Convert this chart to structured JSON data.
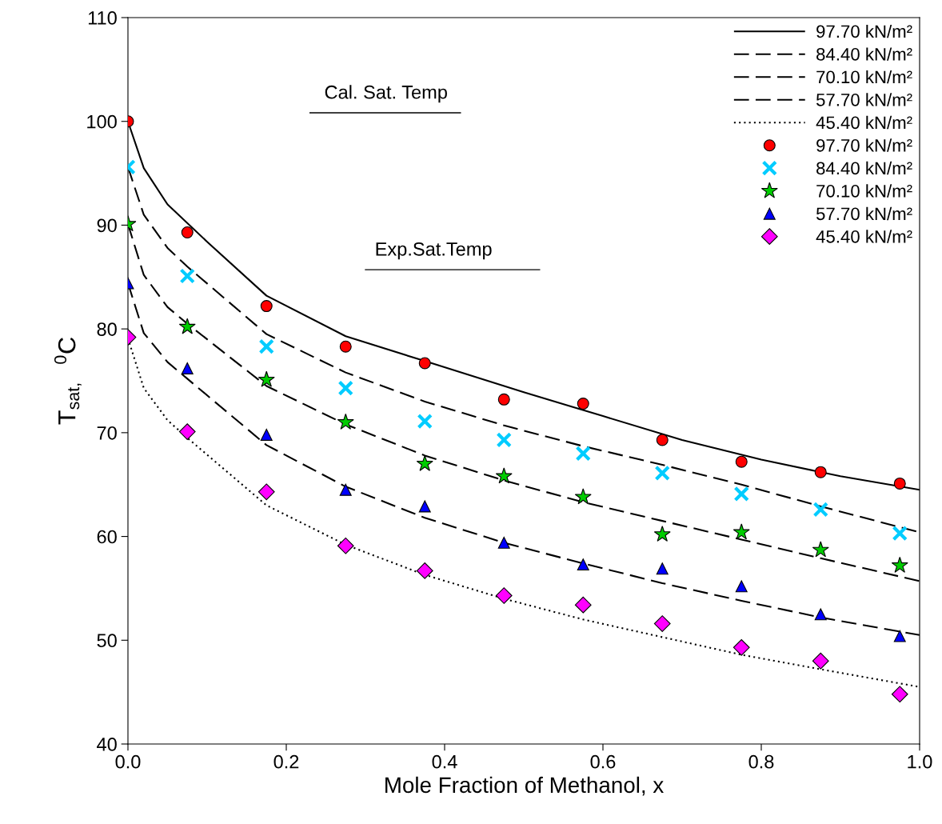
{
  "chart_data": {
    "type": "line",
    "xlabel": "Mole Fraction of Methanol, x",
    "ylabel": "T$_{sat,}$  $^{0}$C",
    "xlim": [
      0,
      1.0
    ],
    "xticks": [
      {
        "value": 0,
        "label": "0.0"
      },
      {
        "value": 0.2,
        "label": "0.2"
      },
      {
        "value": 0.4,
        "label": "0.4"
      },
      {
        "value": 0.6,
        "label": "0.6"
      },
      {
        "value": 0.8,
        "label": "0.8"
      },
      {
        "value": 1.0,
        "label": "1.0"
      }
    ],
    "ylim": [
      40,
      110
    ],
    "yticks": [
      40,
      50,
      60,
      70,
      80,
      90,
      100,
      110
    ],
    "grid": false,
    "legend": "top right",
    "annotations": [
      "Cal. Sat. Temp",
      "Exp.Sat.Temp"
    ],
    "series": [
      {
        "name": "97.70 kN/m²",
        "color": "#000000",
        "line_style": "solid",
        "marker": "none",
        "x": [
          0,
          0.02,
          0.05,
          0.1,
          0.175,
          0.275,
          0.375,
          0.5,
          0.6,
          0.7,
          0.8,
          0.9,
          1.0
        ],
        "values": [
          100,
          95.5,
          92.0,
          88.4,
          83.2,
          79.3,
          76.9,
          73.9,
          71.6,
          69.3,
          67.4,
          65.8,
          64.5
        ]
      },
      {
        "name": "84.40 kN/m²",
        "color": "#000000",
        "line_style": "dashed",
        "marker": "none",
        "x": [
          0,
          0.02,
          0.05,
          0.075,
          0.175,
          0.275,
          0.375,
          0.475,
          0.575,
          0.675,
          0.775,
          0.875,
          1.0
        ],
        "values": [
          95.6,
          91.0,
          87.8,
          86.0,
          79.5,
          75.8,
          73.0,
          70.7,
          68.7,
          66.9,
          65.0,
          62.9,
          60.4
        ]
      },
      {
        "name": "70.10 kN/m²",
        "color": "#000000",
        "line_style": "dashed",
        "marker": "none",
        "x": [
          0,
          0.02,
          0.05,
          0.075,
          0.175,
          0.275,
          0.375,
          0.475,
          0.575,
          0.675,
          0.775,
          0.875,
          1.0
        ],
        "values": [
          90.1,
          85.2,
          82.1,
          80.5,
          74.5,
          70.8,
          67.8,
          65.4,
          63.3,
          61.5,
          59.7,
          57.9,
          55.7
        ]
      },
      {
        "name": "57.70 kN/m²",
        "color": "#000000",
        "line_style": "dashed",
        "marker": "none",
        "x": [
          0,
          0.02,
          0.05,
          0.075,
          0.175,
          0.275,
          0.375,
          0.475,
          0.575,
          0.675,
          0.775,
          0.875,
          1.0
        ],
        "values": [
          84.4,
          79.6,
          76.8,
          75.2,
          68.8,
          64.8,
          61.8,
          59.4,
          57.4,
          55.5,
          53.8,
          52.2,
          50.5
        ]
      },
      {
        "name": "45.40 kN/m²",
        "color": "#000000",
        "line_style": "dotted",
        "marker": "none",
        "x": [
          0,
          0.02,
          0.05,
          0.075,
          0.175,
          0.275,
          0.375,
          0.475,
          0.575,
          0.675,
          0.775,
          0.875,
          1.0
        ],
        "values": [
          79.1,
          74.3,
          71.2,
          69.5,
          63.0,
          59.2,
          56.3,
          54.0,
          52.0,
          50.3,
          48.6,
          47.2,
          45.5
        ]
      },
      {
        "name": "97.70 kN/m²",
        "type": "scatter",
        "color": "#ff0000",
        "marker": "circle",
        "x": [
          0,
          0.075,
          0.175,
          0.275,
          0.375,
          0.475,
          0.575,
          0.675,
          0.775,
          0.875,
          0.975
        ],
        "values": [
          100,
          89.3,
          82.2,
          78.3,
          76.7,
          73.2,
          72.8,
          69.3,
          67.2,
          66.2,
          65.1
        ]
      },
      {
        "name": "84.40 kN/m²",
        "type": "scatter",
        "color": "#00ccff",
        "marker": "cross",
        "x": [
          0,
          0.075,
          0.175,
          0.275,
          0.375,
          0.475,
          0.575,
          0.675,
          0.775,
          0.875,
          0.975
        ],
        "values": [
          95.6,
          85.1,
          78.3,
          74.3,
          71.1,
          69.3,
          68.0,
          66.1,
          64.1,
          62.6,
          60.3
        ]
      },
      {
        "name": "70.10 kN/m²",
        "type": "scatter",
        "color": "#00cc00",
        "marker": "star",
        "x": [
          0,
          0.075,
          0.175,
          0.275,
          0.375,
          0.475,
          0.575,
          0.675,
          0.775,
          0.875,
          0.975
        ],
        "values": [
          90.1,
          80.2,
          75.1,
          71.0,
          67.0,
          65.8,
          63.8,
          60.2,
          60.4,
          58.7,
          57.2
        ]
      },
      {
        "name": "57.70 kN/m²",
        "type": "scatter",
        "color": "#0000ff",
        "marker": "triangle",
        "x": [
          0,
          0.075,
          0.175,
          0.275,
          0.375,
          0.475,
          0.575,
          0.675,
          0.775,
          0.875,
          0.975
        ],
        "values": [
          84.4,
          76.2,
          69.8,
          64.5,
          62.9,
          59.4,
          57.3,
          56.9,
          55.2,
          52.5,
          50.4
        ]
      },
      {
        "name": "45.40 kN/m²",
        "type": "scatter",
        "color": "#ff00ff",
        "marker": "diamond",
        "x": [
          0,
          0.075,
          0.175,
          0.275,
          0.375,
          0.475,
          0.575,
          0.675,
          0.775,
          0.875,
          0.975
        ],
        "values": [
          79.2,
          70.1,
          64.3,
          59.1,
          56.7,
          54.3,
          53.4,
          51.6,
          49.3,
          48.0,
          44.8
        ]
      }
    ]
  }
}
